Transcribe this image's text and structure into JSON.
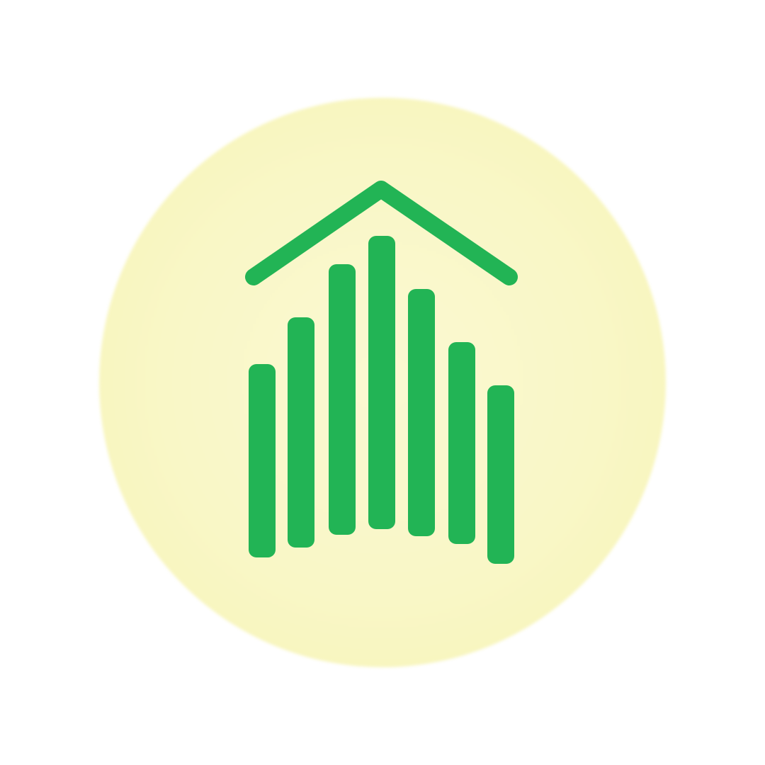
{
  "logo": {
    "icon": "house-bar-chart-icon",
    "colors": {
      "mark": "#22b455",
      "background_circle": "#f8f6c0",
      "page": "#ffffff"
    }
  }
}
